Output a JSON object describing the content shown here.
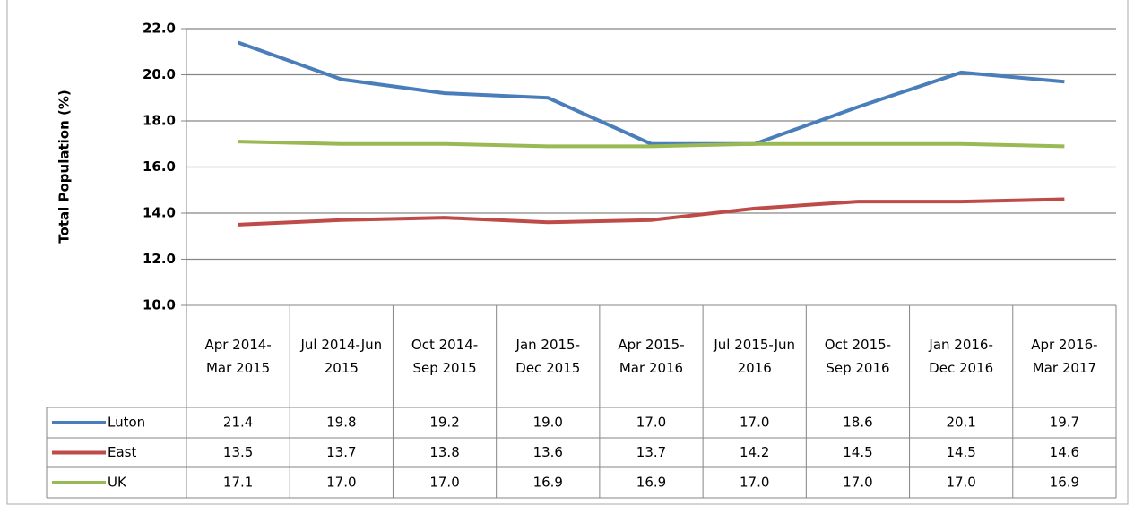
{
  "chart_data": {
    "type": "line",
    "y_label": "Total Population (%)",
    "categories": [
      "Apr 2014-Mar 2015",
      "Jul 2014-Jun 2015",
      "Oct 2014-Sep 2015",
      "Jan 2015-Dec 2015",
      "Apr 2015-Mar 2016",
      "Jul 2015-Jun 2016",
      "Oct 2015-Sep 2016",
      "Jan 2016-Dec 2016",
      "Apr 2016-Mar 2017"
    ],
    "series": [
      {
        "name": "Luton",
        "color": "#4a7ebb",
        "values": [
          21.4,
          19.8,
          19.2,
          19.0,
          17.0,
          17.0,
          18.6,
          20.1,
          19.7
        ],
        "value_labels": [
          "21.4",
          "19.8",
          "19.2",
          "19.0",
          "17.0",
          "17.0",
          "18.6",
          "20.1",
          "19.7"
        ]
      },
      {
        "name": "East",
        "color": "#be4b48",
        "values": [
          13.5,
          13.7,
          13.8,
          13.6,
          13.7,
          14.2,
          14.5,
          14.5,
          14.6
        ],
        "value_labels": [
          "13.5",
          "13.7",
          "13.8",
          "13.6",
          "13.7",
          "14.2",
          "14.5",
          "14.5",
          "14.6"
        ]
      },
      {
        "name": "UK",
        "color": "#98b954",
        "values": [
          17.1,
          17.0,
          17.0,
          16.9,
          16.9,
          17.0,
          17.0,
          17.0,
          16.9
        ],
        "value_labels": [
          "17.1",
          "17.0",
          "17.0",
          "16.9",
          "16.9",
          "17.0",
          "17.0",
          "17.0",
          "16.9"
        ]
      }
    ],
    "ylim": [
      10,
      22
    ],
    "yticks": [
      {
        "value": 10,
        "label": "10.0"
      },
      {
        "value": 12,
        "label": "12.0"
      },
      {
        "value": 14,
        "label": "14.0"
      },
      {
        "value": 16,
        "label": "16.0"
      },
      {
        "value": 18,
        "label": "18.0"
      },
      {
        "value": 20,
        "label": "20.0"
      },
      {
        "value": 22,
        "label": "22.0"
      }
    ],
    "grid": true
  }
}
